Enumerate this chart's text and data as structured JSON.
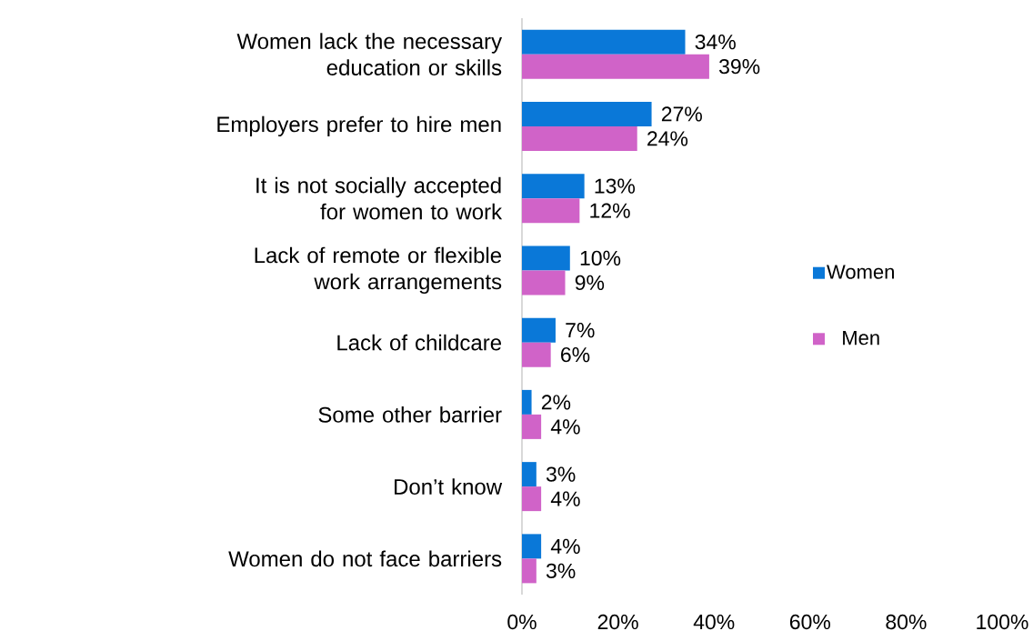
{
  "chart_data": {
    "type": "bar",
    "orientation": "horizontal",
    "categories": [
      "Women lack the necessary education or skills",
      "Employers prefer to hire men",
      "It is not socially accepted for women to work",
      "Lack of remote or flexible work arrangements",
      "Lack of childcare",
      "Some other barrier",
      "Don’t know",
      "Women do not face barriers"
    ],
    "series": [
      {
        "name": "Women",
        "color": "#0a78d8",
        "values": [
          34,
          27,
          13,
          10,
          7,
          2,
          3,
          4
        ],
        "value_labels": [
          "34%",
          "27%",
          "13%",
          "10%",
          "7%",
          "2%",
          "3%",
          "4%"
        ]
      },
      {
        "name": "Men",
        "color": "#d063c8",
        "values": [
          39,
          24,
          12,
          9,
          6,
          4,
          4,
          3
        ],
        "value_labels": [
          "39%",
          "24%",
          "12%",
          "9%",
          "6%",
          "4%",
          "4%",
          "3%"
        ]
      }
    ],
    "xlim": [
      0,
      100
    ],
    "xticks": [
      {
        "value": 0,
        "label": "0%"
      },
      {
        "value": 20,
        "label": "20%"
      },
      {
        "value": 40,
        "label": "40%"
      },
      {
        "value": 60,
        "label": "60%"
      },
      {
        "value": 80,
        "label": "80%"
      },
      {
        "value": 100,
        "label": "100%"
      }
    ],
    "legend": "right",
    "grid": false
  }
}
